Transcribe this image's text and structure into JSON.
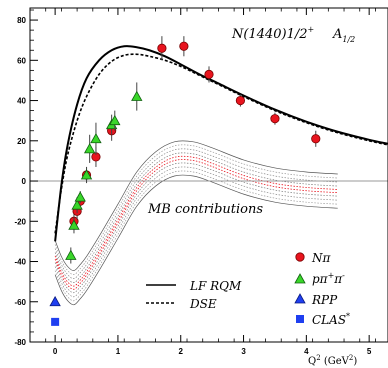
{
  "chart_data": {
    "type": "scatter",
    "title": "N(1440)1/2",
    "title_superscript": "+",
    "amplitude_label": "A",
    "amplitude_subscript": "1/2",
    "xlabel": "Q",
    "xlabel_superscript": "2",
    "xlabel_unit": " (GeV",
    "xlabel_unit_superscript": "2",
    "xlabel_unit_close": ")",
    "ylabel": "",
    "xlim": [
      -0.4,
      5.3
    ],
    "ylim": [
      -80,
      86
    ],
    "x_ticks": [
      "0",
      "1",
      "2",
      "3",
      "4",
      "5"
    ],
    "y_ticks": [
      "80",
      "60",
      "40",
      "20",
      "0",
      "-20",
      "-40",
      "-60",
      "-80"
    ],
    "grid": false,
    "zero_line": true,
    "annotation": "MB contributions",
    "legend_position": "bottom-right",
    "legend_curves": [
      {
        "name": "LF RQM",
        "style": "solid"
      },
      {
        "name": "DSE",
        "style": "dashed"
      }
    ],
    "legend_markers": [
      {
        "name": "Nπ",
        "marker": "circle",
        "color": "#e8141e"
      },
      {
        "name_base": "pπ",
        "sup": "+",
        "name_mid": "π",
        "sup2": "-",
        "marker": "triangle",
        "color": "#39d629"
      },
      {
        "name": "RPP",
        "marker": "triangle",
        "color": "#1f3ff0"
      },
      {
        "name_base": "CLAS",
        "sup": "*",
        "marker": "square",
        "color": "#1f3ff0"
      }
    ],
    "series": [
      {
        "name": "LF RQM",
        "kind": "curve",
        "style": "solid",
        "x": [
          0,
          0.1,
          0.2,
          0.35,
          0.5,
          0.7,
          0.9,
          1.1,
          1.3,
          1.5,
          1.75,
          2.0,
          2.3,
          2.6,
          3.0,
          3.5,
          4.0,
          4.5,
          5.0,
          5.3
        ],
        "y": [
          -30,
          -2,
          18,
          38,
          51,
          60,
          65,
          67,
          66.5,
          65,
          62,
          58,
          53,
          48.5,
          42.5,
          35.5,
          29.5,
          24.5,
          20.5,
          18.5
        ]
      },
      {
        "name": "DSE",
        "kind": "curve",
        "style": "dashed",
        "x": [
          0,
          0.1,
          0.2,
          0.35,
          0.5,
          0.7,
          0.9,
          1.1,
          1.3,
          1.5,
          1.75,
          2.0,
          2.3,
          2.6,
          3.0,
          3.5,
          4.0,
          4.5,
          5.0,
          5.3
        ],
        "y": [
          -26,
          -4,
          13,
          30,
          42,
          53,
          59.5,
          62.5,
          63,
          62,
          60,
          57,
          52.5,
          48,
          42,
          35,
          29,
          24,
          20,
          18
        ]
      },
      {
        "name": "MB contributions",
        "kind": "band",
        "color": "#e8141e",
        "x": [
          0,
          0.1,
          0.2,
          0.3,
          0.4,
          0.5,
          0.7,
          1.0,
          1.3,
          1.6,
          1.9,
          2.2,
          2.5,
          3.0,
          3.5,
          4.0,
          4.5
        ],
        "center": [
          -38,
          -46,
          -51,
          -53,
          -50,
          -46,
          -36,
          -20,
          -4,
          6,
          11,
          11,
          8,
          2,
          -2,
          -4,
          -5
        ],
        "half_widths": [
          2.5,
          4.5,
          6.5,
          8.5
        ]
      },
      {
        "name": "Nπ",
        "kind": "points",
        "marker": "circle",
        "color": "#e8141e",
        "x": [
          0.3,
          0.35,
          0.4,
          0.5,
          0.65,
          0.9,
          1.7,
          2.05,
          2.45,
          2.95,
          3.5,
          4.15
        ],
        "y": [
          -20,
          -15,
          -10,
          3,
          12,
          25,
          66,
          67,
          53,
          40,
          31,
          21
        ],
        "err": [
          4,
          4,
          4,
          4,
          5,
          5,
          6,
          5,
          4,
          3,
          3,
          4
        ]
      },
      {
        "name": "pπ+π-",
        "kind": "points",
        "marker": "triangle",
        "color": "#39d629",
        "x": [
          0.25,
          0.3,
          0.35,
          0.4,
          0.5,
          0.55,
          0.65,
          0.9,
          0.95,
          1.3
        ],
        "y": [
          -37,
          -22,
          -12,
          -8,
          3,
          16,
          21,
          28,
          30,
          42
        ],
        "err": [
          4,
          4,
          4,
          3,
          4,
          7,
          8,
          5,
          5,
          7
        ]
      },
      {
        "name": "RPP",
        "kind": "points",
        "marker": "triangle",
        "color": "#1f3ff0",
        "x": [
          0
        ],
        "y": [
          -60
        ],
        "err": [
          0
        ]
      },
      {
        "name": "CLAS*",
        "kind": "points",
        "marker": "square",
        "color": "#1f3ff0",
        "x": [
          0
        ],
        "y": [
          -70
        ],
        "err": [
          0
        ]
      }
    ]
  }
}
